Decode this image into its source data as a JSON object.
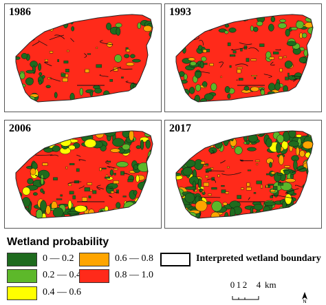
{
  "panels": [
    {
      "year": "1986"
    },
    {
      "year": "1993"
    },
    {
      "year": "2006"
    },
    {
      "year": "2017"
    }
  ],
  "legend": {
    "title": "Wetland probability",
    "classes": [
      {
        "label": "0 — 0.2",
        "color": "#1e6b1e"
      },
      {
        "label": "0.2 — 0.4",
        "color": "#5db82a"
      },
      {
        "label": "0.4 — 0.6",
        "color": "#ffff00"
      },
      {
        "label": "0.6 — 0.8",
        "color": "#ffa500"
      },
      {
        "label": "0.8 — 1.0",
        "color": "#ff2a1a"
      }
    ],
    "boundary_label": "Interpreted wetland boundary"
  },
  "scalebar": {
    "ticks": [
      "0",
      "1",
      "2",
      "4"
    ],
    "unit": "km",
    "north": "N"
  }
}
